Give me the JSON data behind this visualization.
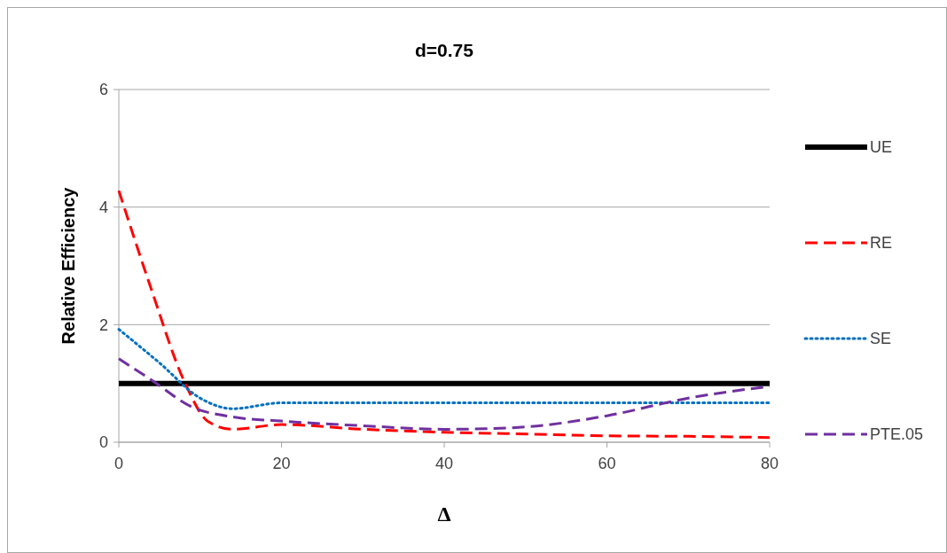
{
  "chart_data": {
    "type": "line",
    "title": "d=0.75",
    "xlabel": "Δ",
    "ylabel": "Relative Efficiency",
    "xlim": [
      0,
      80
    ],
    "xticks": [
      0,
      20,
      40,
      60,
      80
    ],
    "ylim": [
      0,
      6
    ],
    "yticks": [
      0,
      2,
      4,
      6
    ],
    "grid": "y",
    "legend": "right",
    "marker": "none",
    "series": [
      {
        "name": "UE",
        "color": "#000000",
        "line_style": "solid",
        "x": [
          0,
          80
        ],
        "values": [
          1,
          1
        ]
      },
      {
        "name": "RE",
        "color": "#ff0000",
        "line_style": "dashed",
        "x": [
          0,
          4,
          8,
          11,
          14,
          20,
          30,
          40,
          50,
          60,
          70,
          80
        ],
        "values": [
          4.28,
          2.6,
          1.05,
          0.35,
          0.22,
          0.3,
          0.22,
          0.17,
          0.14,
          0.11,
          0.1,
          0.08
        ]
      },
      {
        "name": "SE",
        "color": "#0070c0",
        "line_style": "dotted",
        "x": [
          0,
          5,
          10,
          14,
          20,
          30,
          40,
          50,
          60,
          70,
          80
        ],
        "values": [
          1.92,
          1.35,
          0.75,
          0.57,
          0.67,
          0.67,
          0.67,
          0.67,
          0.67,
          0.67,
          0.67
        ]
      },
      {
        "name": "PTE.05",
        "color": "#7030a0",
        "line_style": "dashed",
        "x": [
          0,
          4,
          9,
          14,
          20,
          30,
          40,
          45,
          50,
          60,
          70,
          80
        ],
        "values": [
          1.42,
          1.06,
          0.6,
          0.43,
          0.36,
          0.28,
          0.22,
          0.23,
          0.26,
          0.45,
          0.75,
          0.95
        ]
      }
    ]
  }
}
